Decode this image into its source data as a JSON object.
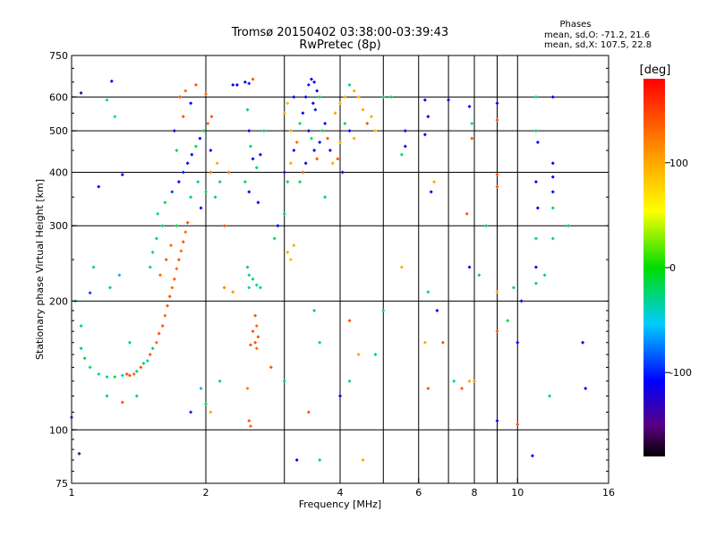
{
  "chart_data": {
    "type": "scatter",
    "title": "Tromsø 20150402 03:38:00-03:39:43",
    "subtitle": "RwPretec (8p)",
    "xlabel": "Frequency [MHz]",
    "ylabel": "Stationary phase Virtual Height [km]",
    "x_scale": "log",
    "y_scale": "log",
    "xlim": [
      1,
      16
    ],
    "ylim": [
      75,
      750
    ],
    "x_ticks": [
      1,
      2,
      4,
      6,
      8,
      10,
      16
    ],
    "x_tick_labels": [
      "1",
      "2",
      "4",
      "6",
      "8",
      "10",
      "16"
    ],
    "x_minor_ticks": [
      3,
      5,
      7,
      9
    ],
    "y_ticks": [
      75,
      100,
      200,
      300,
      400,
      500,
      600,
      750
    ],
    "y_tick_labels": [
      "75",
      "100",
      "200",
      "300",
      "400",
      "500",
      "600",
      "750"
    ],
    "grid": true,
    "phase_legend": {
      "heading": "Phases",
      "line_o": "mean, sd,O: -71.2, 21.6",
      "line_x": "mean, sd,X: 107.5, 22.8"
    },
    "colorbar": {
      "unit": "[deg]",
      "range": [
        -180,
        180
      ],
      "ticks": [
        100,
        0,
        -100
      ],
      "tick_labels": [
        "100",
        "0",
        "-100"
      ]
    },
    "points": [
      {
        "f": 1.0,
        "h": 107,
        "p": -90
      },
      {
        "f": 1.04,
        "h": 88,
        "p": -150
      },
      {
        "f": 1.05,
        "h": 613,
        "p": -140
      },
      {
        "f": 1.1,
        "h": 209,
        "p": -90
      },
      {
        "f": 1.12,
        "h": 240,
        "p": -20
      },
      {
        "f": 1.15,
        "h": 370,
        "p": -110
      },
      {
        "f": 1.2,
        "h": 590,
        "p": -40
      },
      {
        "f": 1.23,
        "h": 653,
        "p": -110
      },
      {
        "f": 1.25,
        "h": 540,
        "p": -40
      },
      {
        "f": 1.3,
        "h": 395,
        "p": -110
      },
      {
        "f": 1.35,
        "h": 160,
        "p": -20
      },
      {
        "f": 1.4,
        "h": 120,
        "p": -20
      },
      {
        "f": 1.22,
        "h": 215,
        "p": -20
      },
      {
        "f": 1.05,
        "h": 175,
        "p": -20
      },
      {
        "f": 1.02,
        "h": 200,
        "p": -20
      },
      {
        "f": 1.28,
        "h": 230,
        "p": -60
      },
      {
        "f": 1.05,
        "h": 155,
        "p": -20
      },
      {
        "f": 1.07,
        "h": 147,
        "p": -10
      },
      {
        "f": 1.1,
        "h": 140,
        "p": -20
      },
      {
        "f": 1.15,
        "h": 135,
        "p": -40
      },
      {
        "f": 1.2,
        "h": 133,
        "p": -30
      },
      {
        "f": 1.25,
        "h": 133,
        "p": -20
      },
      {
        "f": 1.3,
        "h": 134,
        "p": -40
      },
      {
        "f": 1.33,
        "h": 135,
        "p": 140
      },
      {
        "f": 1.35,
        "h": 134,
        "p": 140
      },
      {
        "f": 1.38,
        "h": 135,
        "p": 130
      },
      {
        "f": 1.4,
        "h": 137,
        "p": -20
      },
      {
        "f": 1.43,
        "h": 140,
        "p": 140
      },
      {
        "f": 1.45,
        "h": 143,
        "p": -20
      },
      {
        "f": 1.48,
        "h": 145,
        "p": -40
      },
      {
        "f": 1.5,
        "h": 150,
        "p": 140
      },
      {
        "f": 1.52,
        "h": 155,
        "p": -20
      },
      {
        "f": 1.55,
        "h": 160,
        "p": 130
      },
      {
        "f": 1.57,
        "h": 168,
        "p": 140
      },
      {
        "f": 1.6,
        "h": 175,
        "p": 140
      },
      {
        "f": 1.62,
        "h": 185,
        "p": 130
      },
      {
        "f": 1.64,
        "h": 195,
        "p": 140
      },
      {
        "f": 1.66,
        "h": 205,
        "p": 140
      },
      {
        "f": 1.68,
        "h": 215,
        "p": 130
      },
      {
        "f": 1.7,
        "h": 225,
        "p": 140
      },
      {
        "f": 1.72,
        "h": 238,
        "p": 130
      },
      {
        "f": 1.74,
        "h": 250,
        "p": 140
      },
      {
        "f": 1.76,
        "h": 262,
        "p": 130
      },
      {
        "f": 1.78,
        "h": 275,
        "p": 140
      },
      {
        "f": 1.8,
        "h": 290,
        "p": 130
      },
      {
        "f": 1.82,
        "h": 305,
        "p": 140
      },
      {
        "f": 1.58,
        "h": 230,
        "p": 130
      },
      {
        "f": 1.63,
        "h": 250,
        "p": 140
      },
      {
        "f": 1.67,
        "h": 270,
        "p": 130
      },
      {
        "f": 1.72,
        "h": 300,
        "p": -20
      },
      {
        "f": 1.6,
        "h": 300,
        "p": -30
      },
      {
        "f": 1.55,
        "h": 280,
        "p": -20
      },
      {
        "f": 1.52,
        "h": 260,
        "p": -30
      },
      {
        "f": 1.5,
        "h": 240,
        "p": -20
      },
      {
        "f": 1.56,
        "h": 320,
        "p": -40
      },
      {
        "f": 1.62,
        "h": 340,
        "p": -20
      },
      {
        "f": 1.68,
        "h": 360,
        "p": -90
      },
      {
        "f": 1.74,
        "h": 380,
        "p": -110
      },
      {
        "f": 1.78,
        "h": 400,
        "p": -100
      },
      {
        "f": 1.82,
        "h": 420,
        "p": -120
      },
      {
        "f": 1.86,
        "h": 440,
        "p": -110
      },
      {
        "f": 1.9,
        "h": 460,
        "p": -20
      },
      {
        "f": 1.94,
        "h": 480,
        "p": -110
      },
      {
        "f": 1.98,
        "h": 500,
        "p": -20
      },
      {
        "f": 2.02,
        "h": 520,
        "p": 130
      },
      {
        "f": 2.06,
        "h": 540,
        "p": 140
      },
      {
        "f": 1.85,
        "h": 350,
        "p": -20
      },
      {
        "f": 1.92,
        "h": 380,
        "p": -30
      },
      {
        "f": 2.0,
        "h": 360,
        "p": -20
      },
      {
        "f": 2.05,
        "h": 400,
        "p": 130
      },
      {
        "f": 1.95,
        "h": 330,
        "p": -110
      },
      {
        "f": 2.1,
        "h": 350,
        "p": -20
      },
      {
        "f": 1.75,
        "h": 600,
        "p": 140
      },
      {
        "f": 1.8,
        "h": 620,
        "p": 130
      },
      {
        "f": 1.85,
        "h": 580,
        "p": -110
      },
      {
        "f": 1.9,
        "h": 640,
        "p": 140
      },
      {
        "f": 2.0,
        "h": 610,
        "p": 130
      },
      {
        "f": 1.7,
        "h": 500,
        "p": -110
      },
      {
        "f": 1.72,
        "h": 450,
        "p": -20
      },
      {
        "f": 1.78,
        "h": 540,
        "p": 140
      },
      {
        "f": 2.05,
        "h": 450,
        "p": -110
      },
      {
        "f": 2.12,
        "h": 420,
        "p": 100
      },
      {
        "f": 2.15,
        "h": 380,
        "p": -20
      },
      {
        "f": 2.2,
        "h": 300,
        "p": 140
      },
      {
        "f": 2.25,
        "h": 400,
        "p": 130
      },
      {
        "f": 2.3,
        "h": 640,
        "p": -110
      },
      {
        "f": 2.35,
        "h": 640,
        "p": -110
      },
      {
        "f": 2.45,
        "h": 650,
        "p": -110
      },
      {
        "f": 2.5,
        "h": 645,
        "p": -100
      },
      {
        "f": 2.55,
        "h": 660,
        "p": 140
      },
      {
        "f": 2.48,
        "h": 560,
        "p": -20
      },
      {
        "f": 2.5,
        "h": 500,
        "p": -110
      },
      {
        "f": 2.52,
        "h": 460,
        "p": -20
      },
      {
        "f": 2.55,
        "h": 430,
        "p": -110
      },
      {
        "f": 2.45,
        "h": 380,
        "p": -20
      },
      {
        "f": 2.5,
        "h": 360,
        "p": -110
      },
      {
        "f": 2.6,
        "h": 410,
        "p": -20
      },
      {
        "f": 2.65,
        "h": 440,
        "p": -110
      },
      {
        "f": 2.7,
        "h": 500,
        "p": -20
      },
      {
        "f": 2.62,
        "h": 340,
        "p": -110
      },
      {
        "f": 2.5,
        "h": 230,
        "p": -30
      },
      {
        "f": 2.55,
        "h": 225,
        "p": -20
      },
      {
        "f": 2.6,
        "h": 218,
        "p": -40
      },
      {
        "f": 2.65,
        "h": 215,
        "p": -20
      },
      {
        "f": 2.5,
        "h": 215,
        "p": -40
      },
      {
        "f": 2.48,
        "h": 240,
        "p": -20
      },
      {
        "f": 2.55,
        "h": 170,
        "p": 140
      },
      {
        "f": 2.58,
        "h": 160,
        "p": 140
      },
      {
        "f": 2.6,
        "h": 155,
        "p": 130
      },
      {
        "f": 2.62,
        "h": 165,
        "p": 140
      },
      {
        "f": 2.52,
        "h": 158,
        "p": 140
      },
      {
        "f": 2.58,
        "h": 185,
        "p": 140
      },
      {
        "f": 2.6,
        "h": 175,
        "p": 130
      },
      {
        "f": 2.5,
        "h": 105,
        "p": 140
      },
      {
        "f": 2.52,
        "h": 102,
        "p": 130
      },
      {
        "f": 2.48,
        "h": 125,
        "p": 120
      },
      {
        "f": 2.3,
        "h": 210,
        "p": 110
      },
      {
        "f": 2.2,
        "h": 215,
        "p": 120
      },
      {
        "f": 2.15,
        "h": 130,
        "p": -20
      },
      {
        "f": 1.95,
        "h": 125,
        "p": -60
      },
      {
        "f": 2.0,
        "h": 115,
        "p": -20
      },
      {
        "f": 2.05,
        "h": 110,
        "p": 100
      },
      {
        "f": 1.85,
        "h": 110,
        "p": -100
      },
      {
        "f": 1.2,
        "h": 120,
        "p": -20
      },
      {
        "f": 1.3,
        "h": 116,
        "p": 140
      },
      {
        "f": 2.85,
        "h": 280,
        "p": -20
      },
      {
        "f": 2.9,
        "h": 300,
        "p": -110
      },
      {
        "f": 3.0,
        "h": 320,
        "p": -20
      },
      {
        "f": 3.05,
        "h": 260,
        "p": 100
      },
      {
        "f": 3.1,
        "h": 250,
        "p": 90
      },
      {
        "f": 3.15,
        "h": 270,
        "p": 100
      },
      {
        "f": 3.0,
        "h": 400,
        "p": -110
      },
      {
        "f": 3.05,
        "h": 380,
        "p": -20
      },
      {
        "f": 3.1,
        "h": 420,
        "p": 100
      },
      {
        "f": 3.15,
        "h": 450,
        "p": -110
      },
      {
        "f": 3.2,
        "h": 470,
        "p": 130
      },
      {
        "f": 3.1,
        "h": 500,
        "p": 100
      },
      {
        "f": 3.0,
        "h": 550,
        "p": 100
      },
      {
        "f": 3.05,
        "h": 580,
        "p": 90
      },
      {
        "f": 3.15,
        "h": 600,
        "p": -110
      },
      {
        "f": 3.25,
        "h": 520,
        "p": -20
      },
      {
        "f": 3.3,
        "h": 550,
        "p": -110
      },
      {
        "f": 3.35,
        "h": 600,
        "p": -110
      },
      {
        "f": 3.4,
        "h": 640,
        "p": -100
      },
      {
        "f": 3.45,
        "h": 660,
        "p": -110
      },
      {
        "f": 3.5,
        "h": 650,
        "p": -120
      },
      {
        "f": 3.55,
        "h": 620,
        "p": -110
      },
      {
        "f": 3.6,
        "h": 600,
        "p": -20
      },
      {
        "f": 3.48,
        "h": 580,
        "p": -110
      },
      {
        "f": 3.52,
        "h": 560,
        "p": -100
      },
      {
        "f": 3.4,
        "h": 500,
        "p": -110
      },
      {
        "f": 3.45,
        "h": 480,
        "p": -20
      },
      {
        "f": 3.5,
        "h": 450,
        "p": -110
      },
      {
        "f": 3.55,
        "h": 430,
        "p": 140
      },
      {
        "f": 3.6,
        "h": 470,
        "p": -110
      },
      {
        "f": 3.65,
        "h": 500,
        "p": -20
      },
      {
        "f": 3.7,
        "h": 520,
        "p": -110
      },
      {
        "f": 3.75,
        "h": 480,
        "p": 140
      },
      {
        "f": 3.8,
        "h": 450,
        "p": -110
      },
      {
        "f": 3.85,
        "h": 420,
        "p": 100
      },
      {
        "f": 3.35,
        "h": 420,
        "p": -110
      },
      {
        "f": 3.3,
        "h": 400,
        "p": 140
      },
      {
        "f": 3.25,
        "h": 380,
        "p": -20
      },
      {
        "f": 3.9,
        "h": 550,
        "p": 100
      },
      {
        "f": 4.0,
        "h": 580,
        "p": 90
      },
      {
        "f": 4.1,
        "h": 600,
        "p": 100
      },
      {
        "f": 4.2,
        "h": 640,
        "p": -20
      },
      {
        "f": 4.3,
        "h": 620,
        "p": 100
      },
      {
        "f": 4.4,
        "h": 600,
        "p": 90
      },
      {
        "f": 4.5,
        "h": 560,
        "p": 100
      },
      {
        "f": 4.6,
        "h": 520,
        "p": 140
      },
      {
        "f": 4.7,
        "h": 540,
        "p": 100
      },
      {
        "f": 4.8,
        "h": 500,
        "p": 90
      },
      {
        "f": 4.2,
        "h": 500,
        "p": -110
      },
      {
        "f": 4.3,
        "h": 480,
        "p": 100
      },
      {
        "f": 4.1,
        "h": 520,
        "p": -20
      },
      {
        "f": 4.0,
        "h": 470,
        "p": 100
      },
      {
        "f": 3.95,
        "h": 430,
        "p": 140
      },
      {
        "f": 4.05,
        "h": 400,
        "p": -110
      },
      {
        "f": 3.7,
        "h": 350,
        "p": -20
      },
      {
        "f": 5.0,
        "h": 600,
        "p": -20
      },
      {
        "f": 5.2,
        "h": 600,
        "p": -20
      },
      {
        "f": 5.6,
        "h": 500,
        "p": -110
      },
      {
        "f": 5.6,
        "h": 460,
        "p": -120
      },
      {
        "f": 5.5,
        "h": 440,
        "p": -20
      },
      {
        "f": 5.5,
        "h": 240,
        "p": 100
      },
      {
        "f": 5.0,
        "h": 190,
        "p": -20
      },
      {
        "f": 4.8,
        "h": 150,
        "p": -20
      },
      {
        "f": 4.4,
        "h": 150,
        "p": 100
      },
      {
        "f": 4.2,
        "h": 180,
        "p": 140
      },
      {
        "f": 4.2,
        "h": 130,
        "p": -20
      },
      {
        "f": 4.0,
        "h": 120,
        "p": -110
      },
      {
        "f": 3.6,
        "h": 160,
        "p": -20
      },
      {
        "f": 3.5,
        "h": 190,
        "p": -20
      },
      {
        "f": 3.4,
        "h": 110,
        "p": 140
      },
      {
        "f": 3.6,
        "h": 85,
        "p": -20
      },
      {
        "f": 4.5,
        "h": 85,
        "p": 100
      },
      {
        "f": 3.2,
        "h": 85,
        "p": -110
      },
      {
        "f": 2.8,
        "h": 140,
        "p": 140
      },
      {
        "f": 3.0,
        "h": 130,
        "p": -20
      },
      {
        "f": 6.2,
        "h": 590,
        "p": -110
      },
      {
        "f": 6.3,
        "h": 540,
        "p": -110
      },
      {
        "f": 6.2,
        "h": 490,
        "p": -110
      },
      {
        "f": 6.4,
        "h": 360,
        "p": -110
      },
      {
        "f": 6.5,
        "h": 380,
        "p": 100
      },
      {
        "f": 6.3,
        "h": 210,
        "p": -20
      },
      {
        "f": 6.3,
        "h": 125,
        "p": 140
      },
      {
        "f": 6.2,
        "h": 160,
        "p": 100
      },
      {
        "f": 6.6,
        "h": 190,
        "p": -110
      },
      {
        "f": 6.8,
        "h": 160,
        "p": 140
      },
      {
        "f": 7.0,
        "h": 590,
        "p": -120
      },
      {
        "f": 7.2,
        "h": 130,
        "p": -30
      },
      {
        "f": 7.5,
        "h": 125,
        "p": 140
      },
      {
        "f": 7.7,
        "h": 320,
        "p": 140
      },
      {
        "f": 7.8,
        "h": 570,
        "p": -110
      },
      {
        "f": 7.9,
        "h": 520,
        "p": -40
      },
      {
        "f": 7.9,
        "h": 480,
        "p": 140
      },
      {
        "f": 7.8,
        "h": 240,
        "p": -110
      },
      {
        "f": 7.8,
        "h": 130,
        "p": 100
      },
      {
        "f": 8.0,
        "h": 130,
        "p": 110
      },
      {
        "f": 8.2,
        "h": 230,
        "p": -20
      },
      {
        "f": 8.5,
        "h": 300,
        "p": -20
      },
      {
        "f": 9.0,
        "h": 580,
        "p": -110
      },
      {
        "f": 9.0,
        "h": 530,
        "p": 140
      },
      {
        "f": 9.0,
        "h": 395,
        "p": 140
      },
      {
        "f": 9.0,
        "h": 370,
        "p": 140
      },
      {
        "f": 9.0,
        "h": 210,
        "p": 100
      },
      {
        "f": 9.0,
        "h": 170,
        "p": 140
      },
      {
        "f": 9.0,
        "h": 105,
        "p": -110
      },
      {
        "f": 9.5,
        "h": 180,
        "p": -20
      },
      {
        "f": 10.0,
        "h": 160,
        "p": -110
      },
      {
        "f": 10.0,
        "h": 103,
        "p": 140
      },
      {
        "f": 9.8,
        "h": 215,
        "p": -20
      },
      {
        "f": 10.2,
        "h": 200,
        "p": -110
      },
      {
        "f": 11.0,
        "h": 600,
        "p": -30
      },
      {
        "f": 11.0,
        "h": 500,
        "p": -20
      },
      {
        "f": 11.1,
        "h": 470,
        "p": -110
      },
      {
        "f": 11.0,
        "h": 380,
        "p": -110
      },
      {
        "f": 11.1,
        "h": 330,
        "p": -110
      },
      {
        "f": 11.0,
        "h": 280,
        "p": -20
      },
      {
        "f": 11.0,
        "h": 240,
        "p": -110
      },
      {
        "f": 11.0,
        "h": 220,
        "p": -20
      },
      {
        "f": 11.5,
        "h": 230,
        "p": -20
      },
      {
        "f": 11.8,
        "h": 120,
        "p": -20
      },
      {
        "f": 12.0,
        "h": 390,
        "p": -110
      },
      {
        "f": 12.0,
        "h": 360,
        "p": -110
      },
      {
        "f": 12.0,
        "h": 420,
        "p": -110
      },
      {
        "f": 12.0,
        "h": 330,
        "p": -20
      },
      {
        "f": 12.0,
        "h": 280,
        "p": -20
      },
      {
        "f": 12.0,
        "h": 600,
        "p": -110
      },
      {
        "f": 10.8,
        "h": 87,
        "p": -110
      },
      {
        "f": 14.0,
        "h": 160,
        "p": -110
      },
      {
        "f": 14.2,
        "h": 125,
        "p": -110
      },
      {
        "f": 13.0,
        "h": 300,
        "p": -20
      }
    ]
  }
}
